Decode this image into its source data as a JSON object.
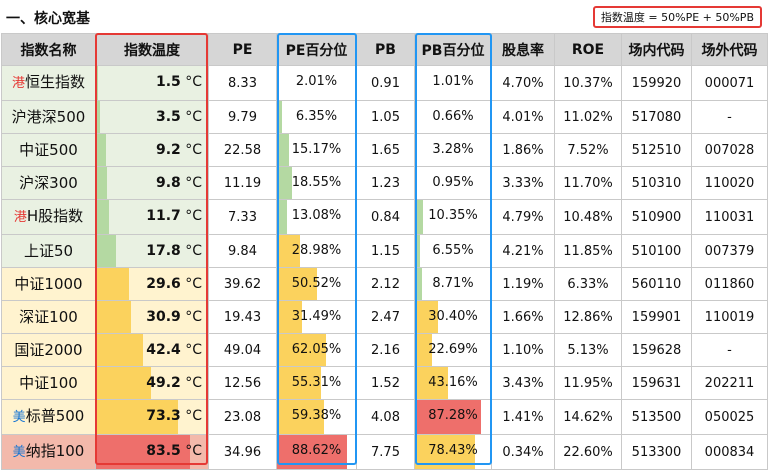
{
  "section_title": "一、核心宽基",
  "formula": "指数温度 = 50%PE + 50%PB",
  "headers": [
    "指数名称",
    "指数温度",
    "PE",
    "PE百分位",
    "PB",
    "PB百分位",
    "股息率",
    "ROE",
    "场内代码",
    "场外代码"
  ],
  "temp_unit": "°C",
  "colors": {
    "green_bar": "#b4d9a2",
    "yellow_bar": "#fbd25d",
    "red_bar": "#ee6f6b",
    "green_row": "#e9f1e2",
    "yellow_row": "#fff3cf",
    "red_row": "#f3b9ab",
    "prefix_red": "#e53935",
    "prefix_blue": "#1976d2",
    "highlight_red": "#e53935",
    "highlight_blue": "#2196f3"
  },
  "rows": [
    {
      "prefix": "港",
      "prefix_color": "red",
      "name": "恒生指数",
      "temp": "1.5",
      "temp_level": "green",
      "pe": "8.33",
      "pe_pct": "2.01%",
      "pe_level": "green",
      "pb": "0.91",
      "pb_pct": "1.01%",
      "pb_level": "green",
      "dividend": "4.70%",
      "roe": "10.37%",
      "code_in": "159920",
      "code_out": "000071",
      "row_bg": "green"
    },
    {
      "prefix": "",
      "prefix_color": "",
      "name": "沪港深500",
      "temp": "3.5",
      "temp_level": "green",
      "pe": "9.79",
      "pe_pct": "6.35%",
      "pe_level": "green",
      "pb": "1.05",
      "pb_pct": "0.66%",
      "pb_level": "green",
      "dividend": "4.01%",
      "roe": "11.02%",
      "code_in": "517080",
      "code_out": "-",
      "row_bg": "green"
    },
    {
      "prefix": "",
      "prefix_color": "",
      "name": "中证500",
      "temp": "9.2",
      "temp_level": "green",
      "pe": "22.58",
      "pe_pct": "15.17%",
      "pe_level": "green",
      "pb": "1.65",
      "pb_pct": "3.28%",
      "pb_level": "green",
      "dividend": "1.86%",
      "roe": "7.52%",
      "code_in": "512510",
      "code_out": "007028",
      "row_bg": "green"
    },
    {
      "prefix": "",
      "prefix_color": "",
      "name": "沪深300",
      "temp": "9.8",
      "temp_level": "green",
      "pe": "11.19",
      "pe_pct": "18.55%",
      "pe_level": "green",
      "pb": "1.23",
      "pb_pct": "0.95%",
      "pb_level": "green",
      "dividend": "3.33%",
      "roe": "11.70%",
      "code_in": "510310",
      "code_out": "110020",
      "row_bg": "green"
    },
    {
      "prefix": "港",
      "prefix_color": "red",
      "name": "H股指数",
      "temp": "11.7",
      "temp_level": "green",
      "pe": "7.33",
      "pe_pct": "13.08%",
      "pe_level": "green",
      "pb": "0.84",
      "pb_pct": "10.35%",
      "pb_level": "green",
      "dividend": "4.79%",
      "roe": "10.48%",
      "code_in": "510900",
      "code_out": "110031",
      "row_bg": "green"
    },
    {
      "prefix": "",
      "prefix_color": "",
      "name": "上证50",
      "temp": "17.8",
      "temp_level": "green",
      "pe": "9.84",
      "pe_pct": "28.98%",
      "pe_level": "yellow",
      "pb": "1.15",
      "pb_pct": "6.55%",
      "pb_level": "green",
      "dividend": "4.21%",
      "roe": "11.85%",
      "code_in": "510100",
      "code_out": "007379",
      "row_bg": "green"
    },
    {
      "prefix": "",
      "prefix_color": "",
      "name": "中证1000",
      "temp": "29.6",
      "temp_level": "yellow",
      "pe": "39.62",
      "pe_pct": "50.52%",
      "pe_level": "yellow",
      "pb": "2.12",
      "pb_pct": "8.71%",
      "pb_level": "green",
      "dividend": "1.19%",
      "roe": "6.33%",
      "code_in": "560110",
      "code_out": "011860",
      "row_bg": "yellow"
    },
    {
      "prefix": "",
      "prefix_color": "",
      "name": "深证100",
      "temp": "30.9",
      "temp_level": "yellow",
      "pe": "19.43",
      "pe_pct": "31.49%",
      "pe_level": "yellow",
      "pb": "2.47",
      "pb_pct": "30.40%",
      "pb_level": "yellow",
      "dividend": "1.66%",
      "roe": "12.86%",
      "code_in": "159901",
      "code_out": "110019",
      "row_bg": "yellow"
    },
    {
      "prefix": "",
      "prefix_color": "",
      "name": "国证2000",
      "temp": "42.4",
      "temp_level": "yellow",
      "pe": "49.04",
      "pe_pct": "62.05%",
      "pe_level": "yellow",
      "pb": "2.16",
      "pb_pct": "22.69%",
      "pb_level": "yellow",
      "dividend": "1.10%",
      "roe": "5.13%",
      "code_in": "159628",
      "code_out": "-",
      "row_bg": "yellow"
    },
    {
      "prefix": "",
      "prefix_color": "",
      "name": "中证100",
      "temp": "49.2",
      "temp_level": "yellow",
      "pe": "12.56",
      "pe_pct": "55.31%",
      "pe_level": "yellow",
      "pb": "1.52",
      "pb_pct": "43.16%",
      "pb_level": "yellow",
      "dividend": "3.43%",
      "roe": "11.95%",
      "code_in": "159631",
      "code_out": "202211",
      "row_bg": "yellow"
    },
    {
      "prefix": "美",
      "prefix_color": "blue",
      "name": "标普500",
      "temp": "73.3",
      "temp_level": "yellow",
      "pe": "23.08",
      "pe_pct": "59.38%",
      "pe_level": "yellow",
      "pb": "4.08",
      "pb_pct": "87.28%",
      "pb_level": "red",
      "dividend": "1.41%",
      "roe": "14.62%",
      "code_in": "513500",
      "code_out": "050025",
      "row_bg": "yellow"
    },
    {
      "prefix": "美",
      "prefix_color": "blue",
      "name": "纳指100",
      "temp": "83.5",
      "temp_level": "red",
      "pe": "34.96",
      "pe_pct": "88.62%",
      "pe_level": "red",
      "pb": "7.75",
      "pb_pct": "78.43%",
      "pb_level": "yellow",
      "dividend": "0.34%",
      "roe": "22.60%",
      "code_in": "513300",
      "code_out": "000834",
      "row_bg": "red"
    }
  ]
}
